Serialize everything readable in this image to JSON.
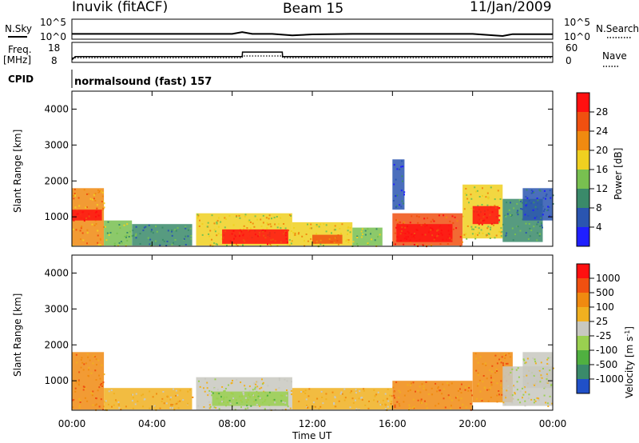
{
  "header": {
    "station": "Inuvik (fitACF)",
    "beam": "Beam 15",
    "date": "11/Jan/2009"
  },
  "side_labels": {
    "n_sky": "N.Sky",
    "freq": "Freq.",
    "freq_unit": "[MHz]",
    "cpid": "CPID",
    "n_search": "N.Search",
    "nave": "Nave"
  },
  "cpid_text": "normalsound (fast) 157",
  "chart_data": [
    {
      "type": "line",
      "name": "noise",
      "series": [
        {
          "name": "N.Sky",
          "x": [
            "00:00",
            "02:00",
            "04:00",
            "06:00",
            "08:00",
            "08:30",
            "09:00",
            "10:00",
            "11:00",
            "12:00",
            "14:00",
            "16:00",
            "18:00",
            "20:00",
            "21:30",
            "22:00",
            "24:00"
          ],
          "values": [
            0.5,
            0.5,
            0.5,
            0.5,
            0.5,
            1.2,
            0.5,
            0.5,
            -0.1,
            0.3,
            0.5,
            0.5,
            0.5,
            0.5,
            -0.3,
            0.4,
            0.4
          ]
        }
      ],
      "left_ticks": [
        "10^5",
        "10^0"
      ],
      "right_ticks": [
        "10^5",
        "10^0"
      ]
    },
    {
      "type": "line",
      "name": "frequency",
      "series": [
        {
          "name": "Freq.",
          "x": [
            "00:00",
            "00:10",
            "08:30",
            "08:31",
            "10:30",
            "10:31",
            "24:00"
          ],
          "values": [
            9.5,
            12.5,
            12.5,
            16.5,
            16.5,
            12.5,
            12.5
          ]
        },
        {
          "name": "Nave",
          "x": [
            "00:00",
            "08:30",
            "08:31",
            "10:30",
            "10:31",
            "24:00"
          ],
          "values": [
            20,
            20,
            30,
            30,
            20,
            20
          ]
        }
      ],
      "left_ticks": [
        "18",
        "8"
      ],
      "right_ticks": [
        "60",
        "0"
      ]
    },
    {
      "type": "heatmap",
      "name": "power",
      "x_ticks": [
        "00:00",
        "04:00",
        "08:00",
        "12:00",
        "16:00",
        "20:00",
        "00:00"
      ],
      "y_ticks": [
        "1000",
        "2000",
        "3000",
        "4000"
      ],
      "ylabel": "Slant Range [km]",
      "ylim": [
        180,
        4500
      ],
      "colorbar_label": "Power [dB]",
      "colorbar_ticks": [
        "4",
        "8",
        "12",
        "16",
        "20",
        "24",
        "28"
      ],
      "colors": [
        "#1f1fff",
        "#2a55b0",
        "#3a8a6a",
        "#78c050",
        "#f0d020",
        "#f08a10",
        "#f05010",
        "#ff1010"
      ],
      "regions": [
        {
          "t": [
            0.0,
            1.6
          ],
          "r": [
            200,
            1800
          ],
          "level": 5
        },
        {
          "t": [
            0.0,
            1.5
          ],
          "r": [
            900,
            1200
          ],
          "level": 7
        },
        {
          "t": [
            1.6,
            3.0
          ],
          "r": [
            200,
            900
          ],
          "level": 3
        },
        {
          "t": [
            3.0,
            6.0
          ],
          "r": [
            200,
            800
          ],
          "level": 2
        },
        {
          "t": [
            6.2,
            11.0
          ],
          "r": [
            200,
            1100
          ],
          "level": 4
        },
        {
          "t": [
            7.5,
            10.8
          ],
          "r": [
            250,
            650
          ],
          "level": 7
        },
        {
          "t": [
            11.0,
            14.0
          ],
          "r": [
            200,
            850
          ],
          "level": 4
        },
        {
          "t": [
            12.0,
            13.5
          ],
          "r": [
            250,
            500
          ],
          "level": 6
        },
        {
          "t": [
            14.0,
            15.5
          ],
          "r": [
            200,
            700
          ],
          "level": 3
        },
        {
          "t": [
            16.0,
            19.5
          ],
          "r": [
            200,
            1100
          ],
          "level": 6
        },
        {
          "t": [
            16.2,
            19.0
          ],
          "r": [
            300,
            800
          ],
          "level": 7
        },
        {
          "t": [
            16.0,
            16.6
          ],
          "r": [
            1200,
            2600
          ],
          "level": 1
        },
        {
          "t": [
            19.5,
            21.5
          ],
          "r": [
            400,
            1900
          ],
          "level": 4
        },
        {
          "t": [
            20.0,
            21.3
          ],
          "r": [
            800,
            1300
          ],
          "level": 7
        },
        {
          "t": [
            21.5,
            23.5
          ],
          "r": [
            300,
            1500
          ],
          "level": 2
        },
        {
          "t": [
            22.5,
            24.0
          ],
          "r": [
            900,
            1800
          ],
          "level": 1
        }
      ]
    },
    {
      "type": "heatmap",
      "name": "velocity",
      "x_ticks": [
        "00:00",
        "04:00",
        "08:00",
        "12:00",
        "16:00",
        "20:00",
        "00:00"
      ],
      "y_ticks": [
        "1000",
        "2000",
        "3000",
        "4000"
      ],
      "ylabel": "Slant Range [km]",
      "ylim": [
        180,
        4500
      ],
      "xlabel": "Time UT",
      "colorbar_label": "Velocity [m s",
      "colorbar_label_sup": "-1",
      "colorbar_label_end": "]",
      "colorbar_ticks": [
        "1000",
        "500",
        "100",
        "25",
        "-25",
        "-100",
        "-500",
        "-1000"
      ],
      "colors": [
        "#2050c8",
        "#3a8a6a",
        "#50b040",
        "#9ad050",
        "#c8c8c0",
        "#f0b020",
        "#f08a10",
        "#f05010",
        "#ff1010"
      ],
      "regions": [
        {
          "t": [
            0.0,
            1.6
          ],
          "r": [
            200,
            1800
          ],
          "level": 6
        },
        {
          "t": [
            1.6,
            6.0
          ],
          "r": [
            200,
            800
          ],
          "level": 5
        },
        {
          "t": [
            6.2,
            11.0
          ],
          "r": [
            200,
            1100
          ],
          "level": 4
        },
        {
          "t": [
            7.0,
            10.8
          ],
          "r": [
            300,
            700
          ],
          "level": 3
        },
        {
          "t": [
            11.0,
            16.0
          ],
          "r": [
            200,
            800
          ],
          "level": 5
        },
        {
          "t": [
            16.0,
            20.0
          ],
          "r": [
            200,
            1000
          ],
          "level": 6
        },
        {
          "t": [
            20.0,
            22.0
          ],
          "r": [
            400,
            1800
          ],
          "level": 6
        },
        {
          "t": [
            21.5,
            24.0
          ],
          "r": [
            300,
            1400
          ],
          "level": 4
        },
        {
          "t": [
            22.5,
            24.0
          ],
          "r": [
            800,
            1800
          ],
          "level": 4
        }
      ]
    }
  ]
}
